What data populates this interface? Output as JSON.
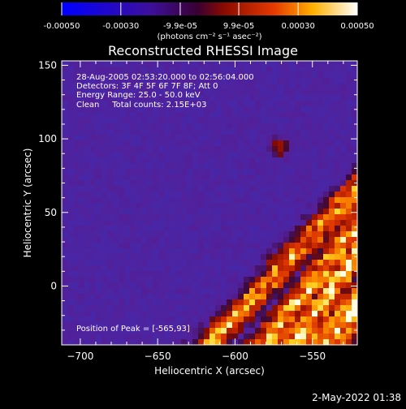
{
  "chart_data": {
    "type": "heatmap",
    "title": "Reconstructed RHESSI Image",
    "colorbar": {
      "ticks": [
        "-0.00050",
        "-0.00030",
        "-9.9e-05",
        "9.9e-05",
        "0.00030",
        "0.00050"
      ],
      "tick_values": [
        -0.0005,
        -0.0003,
        -9.9e-05,
        9.9e-05,
        0.0003,
        0.0005
      ],
      "range": [
        -0.0005,
        0.0005
      ],
      "unit_label": "(photons cm⁻² s⁻¹ asec⁻²)"
    },
    "xlabel": "Heliocentric X (arcsec)",
    "ylabel": "Heliocentric Y (arcsec)",
    "xlim": [
      -712,
      -521
    ],
    "ylim": [
      -40,
      153
    ],
    "xticks": [
      -700,
      -650,
      -600,
      -550
    ],
    "xtick_labels": [
      "−700",
      "−650",
      "−600",
      "−550"
    ],
    "yticks": [
      0,
      50,
      100,
      150
    ],
    "ytick_labels": [
      "0",
      "50",
      "100",
      "150"
    ],
    "info_lines": [
      "28-Aug-2005 02:53:20.000 to 02:56:04.000",
      "Detectors: 3F 4F 5F 6F 7F 8F; Att 0",
      "Energy Range: 25.0 - 50.0 keV",
      "Clean     Total counts: 2.15E+03"
    ],
    "peak_label": "Position of Peak = [-565,93]",
    "peak_position": [
      -565,
      93
    ],
    "colormap": "blue-purple-red-yellow-white"
  },
  "footer": {
    "timestamp": "2-May-2022 01:38"
  }
}
